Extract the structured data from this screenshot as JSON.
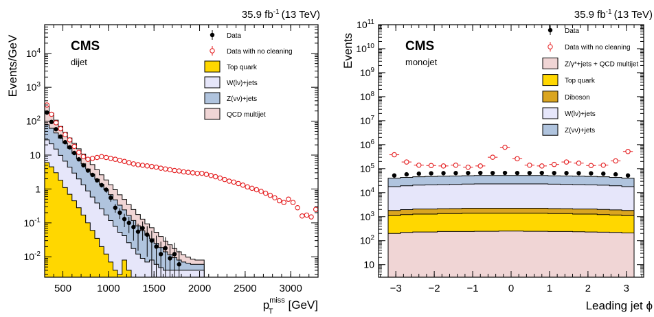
{
  "chart_data": [
    {
      "type": "bar",
      "stacked": true,
      "log_y": true,
      "experiment": "CMS",
      "region": "dijet",
      "lumi": "35.9 fb",
      "lumi_exp": "-1",
      "energy": "(13 TeV)",
      "ylabel": "Events/GeV",
      "xlabel": "[GeV]",
      "xlabel_symbol": "p",
      "xlabel_sup": "miss",
      "xlabel_sub": "T",
      "xlim": [
        300,
        3300
      ],
      "ylim": [
        0.0025,
        70000
      ],
      "xticks": [
        500,
        1000,
        1500,
        2000,
        2500,
        3000
      ],
      "yticks": [
        {
          "v": 0.01,
          "base": "10",
          "exp": "-2"
        },
        {
          "v": 0.1,
          "base": "10",
          "exp": "-1"
        },
        {
          "v": 1,
          "base": "1",
          "exp": ""
        },
        {
          "v": 10,
          "base": "10",
          "exp": ""
        },
        {
          "v": 100,
          "base": "10",
          "exp": "2"
        },
        {
          "v": 1000,
          "base": "10",
          "exp": "3"
        },
        {
          "v": 10000,
          "base": "10",
          "exp": "4"
        }
      ],
      "bin_edges": [
        300,
        350,
        400,
        450,
        500,
        550,
        600,
        650,
        700,
        750,
        800,
        850,
        900,
        950,
        1000,
        1050,
        1100,
        1150,
        1200,
        1250,
        1300,
        1350,
        1400,
        1450,
        1500,
        1550,
        1600,
        1650,
        1700,
        1750,
        1800,
        1850,
        1900,
        1950,
        2000,
        2050
      ],
      "stack": [
        {
          "name": "Top quark",
          "color": "#ffd700",
          "values": [
            6,
            4.5,
            3,
            1.8,
            1.1,
            0.7,
            0.45,
            0.28,
            0.17,
            0.1,
            0.06,
            0.035,
            0.02,
            0.012,
            0.007,
            0.004,
            0.003,
            0.008,
            0.004,
            0.0025,
            0.002,
            0.002,
            0.002,
            0.002,
            0.002,
            0.002,
            0.002,
            0.002,
            0.002,
            0.002,
            0.002,
            0.002,
            0.002,
            0.002,
            0.002
          ]
        },
        {
          "name": "W(lν)+jets",
          "color": "#e6e6fa",
          "values": [
            22,
            17,
            12,
            8,
            5.5,
            3.7,
            2.5,
            1.7,
            1.15,
            0.78,
            0.52,
            0.35,
            0.24,
            0.16,
            0.11,
            0.075,
            0.05,
            0.034,
            0.022,
            0.015,
            0.01,
            0.007,
            0.005,
            0.006,
            0.004,
            0.0028,
            0.002,
            0.002,
            0.002,
            0.002,
            0.002,
            0.002,
            0.002,
            0.002,
            0.002
          ]
        },
        {
          "name": "Z(νν)+jets",
          "color": "#b0c4de",
          "values": [
            50,
            40,
            30,
            22,
            16,
            11.5,
            8.2,
            5.8,
            4.2,
            3.0,
            2.15,
            1.55,
            1.1,
            0.78,
            0.56,
            0.4,
            0.28,
            0.2,
            0.14,
            0.1,
            0.07,
            0.05,
            0.036,
            0.026,
            0.019,
            0.014,
            0.01,
            0.0075,
            0.0055,
            0.004,
            0.003,
            0.0025,
            0.002,
            0.002,
            0.002
          ]
        },
        {
          "name": "QCD multijet",
          "color": "#f0d5d5",
          "values": [
            200,
            110,
            62,
            38,
            24,
            16,
            11,
            7.5,
            5.2,
            3.6,
            2.5,
            1.75,
            1.25,
            0.9,
            0.65,
            0.47,
            0.34,
            0.25,
            0.18,
            0.13,
            0.095,
            0.07,
            0.051,
            0.038,
            0.028,
            0.021,
            0.015,
            0.011,
            0.008,
            0.006,
            0.0045,
            0.0033,
            0.0025,
            0.002,
            0.002
          ]
        }
      ],
      "series": [
        {
          "name": "Data",
          "x": [
            325,
            375,
            425,
            475,
            525,
            575,
            625,
            675,
            725,
            775,
            825,
            875,
            925,
            975,
            1025,
            1075,
            1125,
            1175,
            1225,
            1275,
            1325,
            1375,
            1425,
            1475,
            1525,
            1575,
            1625,
            1675,
            1725,
            1775
          ],
          "y": [
            180,
            95,
            58,
            35,
            24,
            17,
            11.5,
            7.5,
            5,
            3.5,
            2.6,
            1.8,
            1.3,
            0.95,
            0.55,
            0.28,
            0.2,
            0.13,
            0.1,
            0.075,
            0.055,
            0.07,
            0.045,
            0.03,
            0.02,
            0.012,
            0.018,
            0.009,
            0.012,
            0.006
          ],
          "yerr": [
            6,
            4,
            3,
            2,
            1.5,
            1,
            0.8,
            0.6,
            0.45,
            0.35,
            0.3,
            0.25,
            0.2,
            0.18,
            0.13,
            0.08,
            0.07,
            0.055,
            0.05,
            0.045,
            0.04,
            0.04,
            0.035,
            0.028,
            0.022,
            0.016,
            0.02,
            0.012,
            0.014,
            0.009
          ]
        },
        {
          "name": "Data with no cleaning",
          "x": [
            325,
            375,
            425,
            475,
            525,
            575,
            625,
            675,
            725,
            775,
            825,
            875,
            925,
            975,
            1025,
            1075,
            1125,
            1175,
            1225,
            1275,
            1325,
            1375,
            1425,
            1475,
            1525,
            1575,
            1625,
            1675,
            1725,
            1775,
            1825,
            1875,
            1925,
            1975,
            2025,
            2075,
            2125,
            2175,
            2225,
            2275,
            2325,
            2375,
            2425,
            2475,
            2525,
            2575,
            2625,
            2675,
            2725,
            2775,
            2825,
            2875,
            2925,
            2975,
            3025,
            3075,
            3125,
            3175,
            3225,
            3275
          ],
          "y": [
            300,
            160,
            90,
            60,
            40,
            28,
            18,
            12,
            9,
            7.5,
            8,
            8.5,
            9,
            8.5,
            8,
            7.5,
            7,
            6.5,
            6,
            5.5,
            5.2,
            5,
            4.8,
            4.6,
            4.4,
            4.1,
            3.9,
            3.7,
            3.5,
            3.4,
            3.2,
            3.1,
            3,
            2.9,
            2.9,
            2.7,
            2.5,
            2.3,
            2.1,
            1.9,
            1.7,
            1.6,
            1.45,
            1.3,
            1.15,
            1.05,
            0.95,
            0.85,
            0.75,
            0.65,
            0.55,
            0.45,
            0.4,
            0.5,
            0.4,
            0.28,
            0.16,
            0.17,
            0.15,
            0.25
          ]
        }
      ],
      "legend": [
        "Data",
        "Data with no cleaning",
        "Top quark",
        "W(lν)+jets",
        "Z(νν)+jets",
        "QCD multijet"
      ]
    },
    {
      "type": "bar",
      "stacked": true,
      "log_y": true,
      "experiment": "CMS",
      "region": "monojet",
      "lumi": "35.9 fb",
      "lumi_exp": "-1",
      "energy": "(13 TeV)",
      "ylabel": "Events",
      "xlabel": "Leading jet ϕ",
      "xlim": [
        -3.45,
        3.45
      ],
      "ylim": [
        3,
        100000000000
      ],
      "xticks": [
        -3,
        -2,
        -1,
        0,
        1,
        2,
        3
      ],
      "xtick_labels": [
        "−3",
        "−2",
        "−1",
        "0",
        "1",
        "2",
        "3"
      ],
      "yticks": [
        {
          "v": 10,
          "base": "10",
          "exp": ""
        },
        {
          "v": 100,
          "base": "10",
          "exp": "2"
        },
        {
          "v": 1000,
          "base": "10",
          "exp": "3"
        },
        {
          "v": 10000,
          "base": "10",
          "exp": "4"
        },
        {
          "v": 100000,
          "base": "10",
          "exp": "5"
        },
        {
          "v": 1000000,
          "base": "10",
          "exp": "6"
        },
        {
          "v": 10000000,
          "base": "10",
          "exp": "7"
        },
        {
          "v": 100000000,
          "base": "10",
          "exp": "8"
        },
        {
          "v": 1000000000,
          "base": "10",
          "exp": "9"
        },
        {
          "v": 10000000000,
          "base": "10",
          "exp": "10"
        },
        {
          "v": 100000000000,
          "base": "10",
          "exp": "11"
        }
      ],
      "bin_edges": [
        -3.2,
        -2.88,
        -2.56,
        -2.24,
        -1.92,
        -1.6,
        -1.28,
        -0.96,
        -0.64,
        -0.32,
        0,
        0.32,
        0.64,
        0.96,
        1.28,
        1.6,
        1.92,
        2.24,
        2.56,
        2.88,
        3.2
      ],
      "stack": [
        {
          "name": "Z/γ*+jets + QCD multijet",
          "color": "#f0d5d5",
          "values": [
            200,
            220,
            230,
            230,
            240,
            240,
            240,
            245,
            245,
            250,
            250,
            245,
            245,
            240,
            240,
            235,
            230,
            225,
            220,
            210
          ]
        },
        {
          "name": "Top quark",
          "color": "#ffd700",
          "values": [
            900,
            1000,
            1050,
            1050,
            1100,
            1100,
            1150,
            1150,
            1150,
            1150,
            1150,
            1150,
            1150,
            1100,
            1100,
            1050,
            1050,
            1000,
            950,
            900
          ]
        },
        {
          "name": "Diboson",
          "color": "#daa520",
          "values": [
            700,
            750,
            800,
            800,
            820,
            830,
            850,
            850,
            850,
            850,
            850,
            850,
            850,
            830,
            820,
            800,
            800,
            780,
            750,
            700
          ]
        },
        {
          "name": "W(lν)+jets",
          "color": "#e6e6fa",
          "values": [
            16000,
            17500,
            18500,
            19000,
            19500,
            20000,
            20500,
            21000,
            21000,
            21000,
            21000,
            21000,
            21000,
            20500,
            20000,
            19500,
            19000,
            18500,
            17500,
            16000
          ]
        },
        {
          "name": "Z(νν)+jets",
          "color": "#b0c4de",
          "values": [
            22000,
            24000,
            25500,
            26500,
            27000,
            27500,
            28000,
            28500,
            28500,
            28500,
            28500,
            28500,
            28500,
            28000,
            27500,
            27000,
            26500,
            25500,
            24000,
            22000
          ]
        }
      ],
      "series": [
        {
          "name": "Data",
          "x": [
            -3.04,
            -2.72,
            -2.4,
            -2.08,
            -1.76,
            -1.44,
            -1.12,
            -0.8,
            -0.48,
            -0.16,
            0.16,
            0.48,
            0.8,
            1.12,
            1.44,
            1.76,
            2.08,
            2.4,
            2.72,
            3.04
          ],
          "y": [
            52000,
            58000,
            62000,
            64000,
            65000,
            65500,
            66000,
            66500,
            66000,
            66500,
            66000,
            66000,
            66500,
            66000,
            65500,
            65000,
            64000,
            62000,
            58000,
            52000
          ]
        },
        {
          "name": "Data with no cleaning",
          "x": [
            -3.04,
            -2.72,
            -2.4,
            -2.08,
            -1.76,
            -1.44,
            -1.12,
            -0.8,
            -0.48,
            -0.16,
            0.16,
            0.48,
            0.8,
            1.12,
            1.44,
            1.76,
            2.08,
            2.4,
            2.72,
            3.04
          ],
          "y": [
            380000,
            190000,
            140000,
            135000,
            130000,
            140000,
            115000,
            130000,
            300000,
            780000,
            260000,
            140000,
            130000,
            150000,
            190000,
            170000,
            135000,
            140000,
            210000,
            520000
          ]
        }
      ],
      "legend": [
        "Data",
        "Data with no cleaning",
        "Z/γ*+jets + QCD multijet",
        "Top quark",
        "Diboson",
        "W(lν)+jets",
        "Z(νν)+jets"
      ]
    }
  ]
}
